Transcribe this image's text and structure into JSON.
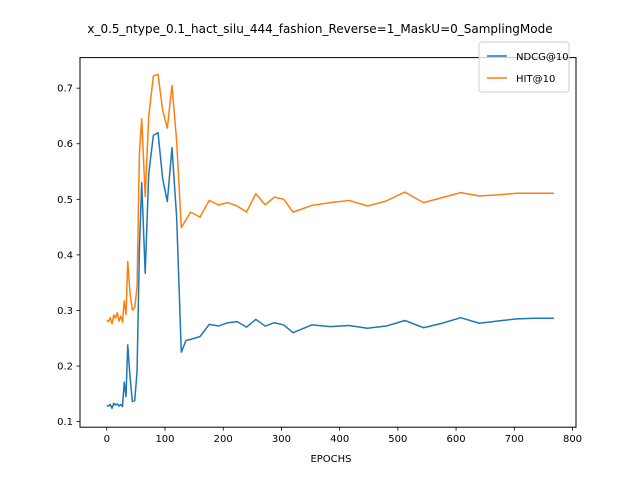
{
  "chart_data": {
    "type": "line",
    "title": "x_0.5_ntype_0.1_hact_silu_444_fashion_Reverse=1_MaskU=0_SamplingMode",
    "xlabel": "EPOCHS",
    "ylabel": "",
    "xlim": [
      -46,
      806
    ],
    "ylim": [
      0.09,
      0.755
    ],
    "xticks": [
      0,
      100,
      200,
      300,
      400,
      500,
      600,
      700,
      800
    ],
    "yticks": [
      0.1,
      0.2,
      0.3,
      0.4,
      0.5,
      0.6,
      0.7
    ],
    "legend_position": "top-right",
    "grid": false,
    "series": [
      {
        "name": "NDCG@10",
        "color": "#1f77b4",
        "x": [
          0,
          3,
          6,
          9,
          12,
          15,
          18,
          21,
          24,
          27,
          30,
          33,
          36,
          40,
          44,
          48,
          52,
          56,
          60,
          66,
          72,
          80,
          88,
          96,
          104,
          112,
          120,
          128,
          136,
          144,
          160,
          176,
          192,
          208,
          224,
          240,
          256,
          272,
          288,
          304,
          320,
          352,
          384,
          416,
          448,
          480,
          512,
          544,
          576,
          608,
          640,
          672,
          704,
          736,
          768
        ],
        "y": [
          0.129,
          0.128,
          0.131,
          0.124,
          0.133,
          0.13,
          0.132,
          0.128,
          0.131,
          0.127,
          0.171,
          0.145,
          0.238,
          0.18,
          0.136,
          0.138,
          0.19,
          0.41,
          0.53,
          0.367,
          0.545,
          0.615,
          0.62,
          0.537,
          0.496,
          0.593,
          0.468,
          0.225,
          0.246,
          0.248,
          0.253,
          0.275,
          0.272,
          0.278,
          0.28,
          0.27,
          0.284,
          0.272,
          0.278,
          0.274,
          0.26,
          0.274,
          0.271,
          0.273,
          0.268,
          0.272,
          0.282,
          0.269,
          0.277,
          0.287,
          0.277,
          0.281,
          0.285,
          0.286,
          0.286
        ]
      },
      {
        "name": "HIT@10",
        "color": "#ff7f0e",
        "x": [
          0,
          3,
          6,
          9,
          12,
          15,
          18,
          21,
          24,
          27,
          30,
          33,
          36,
          40,
          44,
          48,
          52,
          56,
          60,
          66,
          72,
          80,
          88,
          96,
          104,
          112,
          120,
          128,
          136,
          144,
          160,
          176,
          192,
          208,
          224,
          240,
          256,
          272,
          288,
          304,
          320,
          352,
          384,
          416,
          448,
          480,
          512,
          544,
          576,
          608,
          640,
          672,
          704,
          736,
          768
        ],
        "y": [
          0.283,
          0.28,
          0.287,
          0.276,
          0.292,
          0.286,
          0.296,
          0.281,
          0.29,
          0.279,
          0.317,
          0.293,
          0.388,
          0.33,
          0.301,
          0.305,
          0.342,
          0.582,
          0.645,
          0.505,
          0.648,
          0.722,
          0.725,
          0.66,
          0.628,
          0.705,
          0.605,
          0.449,
          0.463,
          0.477,
          0.468,
          0.498,
          0.49,
          0.494,
          0.488,
          0.477,
          0.51,
          0.49,
          0.504,
          0.5,
          0.477,
          0.489,
          0.494,
          0.498,
          0.488,
          0.497,
          0.513,
          0.494,
          0.503,
          0.512,
          0.506,
          0.508,
          0.511,
          0.511,
          0.511
        ]
      }
    ]
  }
}
